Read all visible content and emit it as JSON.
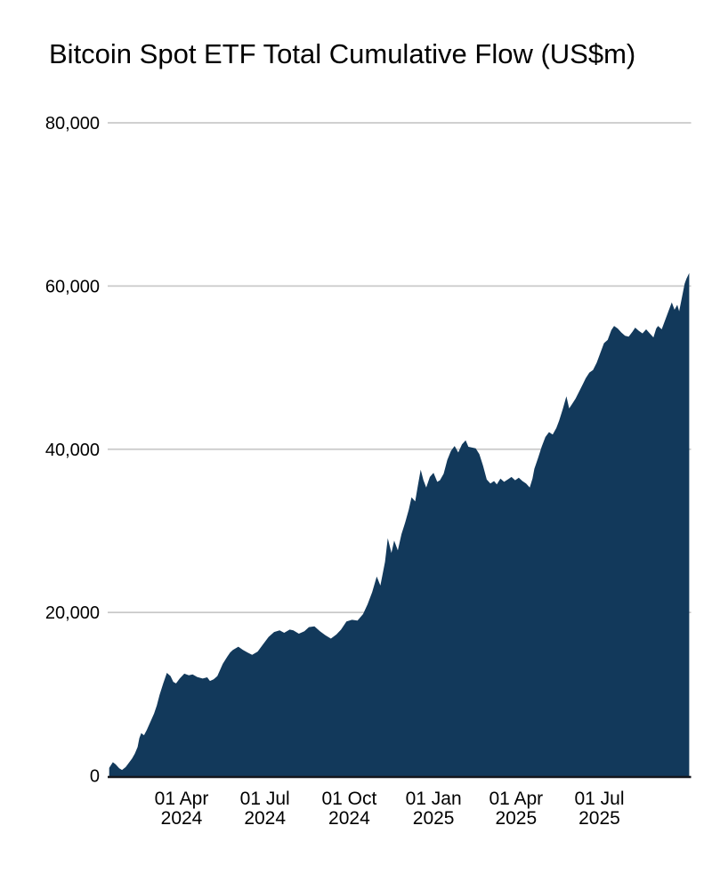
{
  "header": {
    "title": "Bitcoin Spot ETF Total Cumulative Flow (US$m)"
  },
  "colors": {
    "background": "#ffffff",
    "area_fill": "#12395b",
    "gridline": "#c9c9c9",
    "axis_line": "#14161c",
    "text": "#000000"
  },
  "chart_data": {
    "type": "area",
    "title": "Bitcoin Spot ETF Total Cumulative Flow (US$m)",
    "xlabel": "",
    "ylabel": "",
    "ylim": [
      0,
      80000
    ],
    "grid": "horizontal-only",
    "legend": "none",
    "y_ticks": [
      {
        "value": 0,
        "label": "0"
      },
      {
        "value": 20000,
        "label": "20,000"
      },
      {
        "value": 40000,
        "label": "40,000"
      },
      {
        "value": 60000,
        "label": "60,000"
      },
      {
        "value": 80000,
        "label": "80,000"
      }
    ],
    "x_ticks": [
      {
        "date": "2024-04-01",
        "label": "01 Apr",
        "sublabel": "2024"
      },
      {
        "date": "2024-07-01",
        "label": "01 Jul",
        "sublabel": "2024"
      },
      {
        "date": "2024-10-01",
        "label": "01 Oct",
        "sublabel": "2024"
      },
      {
        "date": "2025-01-01",
        "label": "01 Jan",
        "sublabel": "2025"
      },
      {
        "date": "2025-04-01",
        "label": "01 Apr",
        "sublabel": "2025"
      },
      {
        "date": "2025-07-01",
        "label": "01 Jul",
        "sublabel": "2025"
      }
    ],
    "series": [
      {
        "name": "Total Cumulative Flow (US$m)",
        "color": "#12395b",
        "points": [
          [
            "2024-01-13",
            950
          ],
          [
            "2024-01-17",
            1650
          ],
          [
            "2024-01-20",
            1400
          ],
          [
            "2024-01-24",
            900
          ],
          [
            "2024-01-27",
            700
          ],
          [
            "2024-01-31",
            1050
          ],
          [
            "2024-02-03",
            1500
          ],
          [
            "2024-02-07",
            2100
          ],
          [
            "2024-02-10",
            2700
          ],
          [
            "2024-02-13",
            3500
          ],
          [
            "2024-02-15",
            4600
          ],
          [
            "2024-02-17",
            5200
          ],
          [
            "2024-02-20",
            4950
          ],
          [
            "2024-02-23",
            5600
          ],
          [
            "2024-02-27",
            6600
          ],
          [
            "2024-03-02",
            7600
          ],
          [
            "2024-03-05",
            8600
          ],
          [
            "2024-03-08",
            9900
          ],
          [
            "2024-03-12",
            11300
          ],
          [
            "2024-03-16",
            12600
          ],
          [
            "2024-03-20",
            12200
          ],
          [
            "2024-03-23",
            11500
          ],
          [
            "2024-03-26",
            11300
          ],
          [
            "2024-03-30",
            11900
          ],
          [
            "2024-04-04",
            12500
          ],
          [
            "2024-04-09",
            12300
          ],
          [
            "2024-04-13",
            12400
          ],
          [
            "2024-04-18",
            12100
          ],
          [
            "2024-04-24",
            11900
          ],
          [
            "2024-04-29",
            12050
          ],
          [
            "2024-05-02",
            11600
          ],
          [
            "2024-05-06",
            11800
          ],
          [
            "2024-05-10",
            12200
          ],
          [
            "2024-05-16",
            13700
          ],
          [
            "2024-05-21",
            14600
          ],
          [
            "2024-05-24",
            15100
          ],
          [
            "2024-05-27",
            15400
          ],
          [
            "2024-06-02",
            15800
          ],
          [
            "2024-06-07",
            15400
          ],
          [
            "2024-06-12",
            15100
          ],
          [
            "2024-06-17",
            14800
          ],
          [
            "2024-06-23",
            15200
          ],
          [
            "2024-06-29",
            16100
          ],
          [
            "2024-07-05",
            17000
          ],
          [
            "2024-07-11",
            17600
          ],
          [
            "2024-07-17",
            17800
          ],
          [
            "2024-07-22",
            17500
          ],
          [
            "2024-07-28",
            17900
          ],
          [
            "2024-08-01",
            17800
          ],
          [
            "2024-08-07",
            17400
          ],
          [
            "2024-08-13",
            17700
          ],
          [
            "2024-08-18",
            18200
          ],
          [
            "2024-08-24",
            18300
          ],
          [
            "2024-08-30",
            17700
          ],
          [
            "2024-09-05",
            17200
          ],
          [
            "2024-09-11",
            16800
          ],
          [
            "2024-09-17",
            17300
          ],
          [
            "2024-09-22",
            17900
          ],
          [
            "2024-09-28",
            18900
          ],
          [
            "2024-10-04",
            19100
          ],
          [
            "2024-10-10",
            19000
          ],
          [
            "2024-10-16",
            19800
          ],
          [
            "2024-10-21",
            21000
          ],
          [
            "2024-10-26",
            22500
          ],
          [
            "2024-10-31",
            24400
          ],
          [
            "2024-11-04",
            23300
          ],
          [
            "2024-11-09",
            26200
          ],
          [
            "2024-11-12",
            29100
          ],
          [
            "2024-11-16",
            27300
          ],
          [
            "2024-11-19",
            28800
          ],
          [
            "2024-11-23",
            27600
          ],
          [
            "2024-11-27",
            29600
          ],
          [
            "2024-12-01",
            31000
          ],
          [
            "2024-12-05",
            32600
          ],
          [
            "2024-12-08",
            34100
          ],
          [
            "2024-12-12",
            33600
          ],
          [
            "2024-12-15",
            35600
          ],
          [
            "2024-12-18",
            37500
          ],
          [
            "2024-12-21",
            36200
          ],
          [
            "2024-12-24",
            35300
          ],
          [
            "2024-12-28",
            36600
          ],
          [
            "2025-01-01",
            37100
          ],
          [
            "2025-01-05",
            36000
          ],
          [
            "2025-01-08",
            36200
          ],
          [
            "2025-01-12",
            37000
          ],
          [
            "2025-01-16",
            38700
          ],
          [
            "2025-01-20",
            39800
          ],
          [
            "2025-01-24",
            40400
          ],
          [
            "2025-01-28",
            39600
          ],
          [
            "2025-02-01",
            40600
          ],
          [
            "2025-02-05",
            41100
          ],
          [
            "2025-02-08",
            40300
          ],
          [
            "2025-02-12",
            40200
          ],
          [
            "2025-02-16",
            40100
          ],
          [
            "2025-02-20",
            39400
          ],
          [
            "2025-02-24",
            38000
          ],
          [
            "2025-02-28",
            36300
          ],
          [
            "2025-03-04",
            35800
          ],
          [
            "2025-03-08",
            36100
          ],
          [
            "2025-03-11",
            35700
          ],
          [
            "2025-03-15",
            36400
          ],
          [
            "2025-03-19",
            36000
          ],
          [
            "2025-03-23",
            36300
          ],
          [
            "2025-03-27",
            36600
          ],
          [
            "2025-03-31",
            36200
          ],
          [
            "2025-04-04",
            36500
          ],
          [
            "2025-04-08",
            36100
          ],
          [
            "2025-04-12",
            35800
          ],
          [
            "2025-04-16",
            35300
          ],
          [
            "2025-04-19",
            36400
          ],
          [
            "2025-04-21",
            37600
          ],
          [
            "2025-04-25",
            38900
          ],
          [
            "2025-04-29",
            40300
          ],
          [
            "2025-05-03",
            41500
          ],
          [
            "2025-05-07",
            42100
          ],
          [
            "2025-05-11",
            41800
          ],
          [
            "2025-05-15",
            42600
          ],
          [
            "2025-05-18",
            43500
          ],
          [
            "2025-05-22",
            44900
          ],
          [
            "2025-05-26",
            46500
          ],
          [
            "2025-05-29",
            45000
          ],
          [
            "2025-06-01",
            45500
          ],
          [
            "2025-06-05",
            46200
          ],
          [
            "2025-06-09",
            47100
          ],
          [
            "2025-06-13",
            48000
          ],
          [
            "2025-06-16",
            48700
          ],
          [
            "2025-06-20",
            49400
          ],
          [
            "2025-06-24",
            49700
          ],
          [
            "2025-06-28",
            50600
          ],
          [
            "2025-07-02",
            51800
          ],
          [
            "2025-07-06",
            53000
          ],
          [
            "2025-07-10",
            53400
          ],
          [
            "2025-07-14",
            54600
          ],
          [
            "2025-07-17",
            55100
          ],
          [
            "2025-07-21",
            54800
          ],
          [
            "2025-07-25",
            54300
          ],
          [
            "2025-07-29",
            53900
          ],
          [
            "2025-08-02",
            53800
          ],
          [
            "2025-08-06",
            54400
          ],
          [
            "2025-08-09",
            54900
          ],
          [
            "2025-08-13",
            54500
          ],
          [
            "2025-08-17",
            54200
          ],
          [
            "2025-08-21",
            54700
          ],
          [
            "2025-08-25",
            54200
          ],
          [
            "2025-08-29",
            53700
          ],
          [
            "2025-09-01",
            54800
          ],
          [
            "2025-09-03",
            55100
          ],
          [
            "2025-09-07",
            54700
          ],
          [
            "2025-09-11",
            55900
          ],
          [
            "2025-09-15",
            57100
          ],
          [
            "2025-09-18",
            58000
          ],
          [
            "2025-09-21",
            57100
          ],
          [
            "2025-09-24",
            57700
          ],
          [
            "2025-09-26",
            56900
          ],
          [
            "2025-09-29",
            58600
          ],
          [
            "2025-10-02",
            60300
          ],
          [
            "2025-10-04",
            60900
          ],
          [
            "2025-10-07",
            61600
          ]
        ]
      }
    ]
  }
}
